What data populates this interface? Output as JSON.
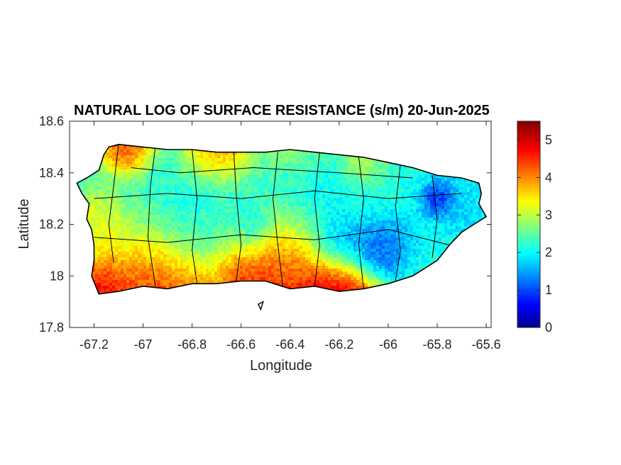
{
  "title": "NATURAL LOG OF SURFACE RESISTANCE (s/m) 20-Jun-2025",
  "x_axis": {
    "label": "Longitude",
    "range": [
      -67.3,
      -65.58
    ],
    "ticks": [
      -67.2,
      -67,
      -66.8,
      -66.6,
      -66.4,
      -66.2,
      -66,
      -65.8,
      -65.6
    ],
    "tick_labels": [
      "-67.2",
      "-67",
      "-66.8",
      "-66.6",
      "-66.4",
      "-66.2",
      "-66",
      "-65.8",
      "-65.6"
    ]
  },
  "y_axis": {
    "label": "Latitude",
    "range": [
      17.8,
      18.6
    ],
    "ticks": [
      17.8,
      18,
      18.2,
      18.4,
      18.6
    ],
    "tick_labels": [
      "17.8",
      "18",
      "18.2",
      "18.4",
      "18.6"
    ]
  },
  "colorbar": {
    "colormap": "jet",
    "range": [
      0,
      5.5
    ],
    "ticks": [
      0,
      1,
      2,
      3,
      4,
      5
    ],
    "tick_labels": [
      "0",
      "1",
      "2",
      "3",
      "4",
      "5"
    ]
  },
  "map_data": {
    "region": "Puerto Rico",
    "variable": "natural log of surface resistance",
    "units": "s/m",
    "date": "20-Jun-2025",
    "grid_lines": false,
    "coastline": [
      [
        -67.27,
        18.36
      ],
      [
        -67.23,
        18.38
      ],
      [
        -67.18,
        18.41
      ],
      [
        -67.16,
        18.47
      ],
      [
        -67.14,
        18.5
      ],
      [
        -67.1,
        18.51
      ],
      [
        -67.0,
        18.5
      ],
      [
        -66.9,
        18.49
      ],
      [
        -66.8,
        18.49
      ],
      [
        -66.7,
        18.48
      ],
      [
        -66.6,
        18.48
      ],
      [
        -66.5,
        18.48
      ],
      [
        -66.4,
        18.49
      ],
      [
        -66.3,
        18.48
      ],
      [
        -66.2,
        18.47
      ],
      [
        -66.1,
        18.46
      ],
      [
        -66.0,
        18.44
      ],
      [
        -65.9,
        18.42
      ],
      [
        -65.8,
        18.39
      ],
      [
        -65.7,
        18.38
      ],
      [
        -65.63,
        18.36
      ],
      [
        -65.62,
        18.32
      ],
      [
        -65.63,
        18.28
      ],
      [
        -65.6,
        18.23
      ],
      [
        -65.65,
        18.2
      ],
      [
        -65.7,
        18.17
      ],
      [
        -65.75,
        18.12
      ],
      [
        -65.8,
        18.06
      ],
      [
        -65.9,
        18.0
      ],
      [
        -66.0,
        17.97
      ],
      [
        -66.1,
        17.95
      ],
      [
        -66.2,
        17.94
      ],
      [
        -66.3,
        17.96
      ],
      [
        -66.4,
        17.95
      ],
      [
        -66.5,
        17.98
      ],
      [
        -66.6,
        17.98
      ],
      [
        -66.7,
        17.97
      ],
      [
        -66.8,
        17.97
      ],
      [
        -66.9,
        17.95
      ],
      [
        -67.0,
        17.96
      ],
      [
        -67.1,
        17.94
      ],
      [
        -67.18,
        17.93
      ],
      [
        -67.21,
        18.0
      ],
      [
        -67.2,
        18.06
      ],
      [
        -67.2,
        18.12
      ],
      [
        -67.21,
        18.18
      ],
      [
        -67.23,
        18.22
      ],
      [
        -67.22,
        18.28
      ],
      [
        -67.25,
        18.32
      ]
    ],
    "islets": [
      [
        [
          -66.53,
          17.89
        ],
        [
          -66.51,
          17.9
        ],
        [
          -66.52,
          17.87
        ]
      ]
    ],
    "value_sources": [
      {
        "lon": -67.17,
        "lat": 17.93,
        "value": 5.5,
        "radius": 0.12
      },
      {
        "lon": -66.95,
        "lat": 17.96,
        "value": 5.3,
        "radius": 0.16
      },
      {
        "lon": -66.5,
        "lat": 17.99,
        "value": 5.4,
        "radius": 0.2
      },
      {
        "lon": -66.2,
        "lat": 17.95,
        "value": 5.4,
        "radius": 0.14
      },
      {
        "lon": -67.0,
        "lat": 18.1,
        "value": 3.4,
        "radius": 0.22
      },
      {
        "lon": -66.45,
        "lat": 18.08,
        "value": 3.6,
        "radius": 0.14
      },
      {
        "lon": -67.17,
        "lat": 18.2,
        "value": 3.5,
        "radius": 0.09
      },
      {
        "lon": -67.05,
        "lat": 18.49,
        "value": 5.2,
        "radius": 0.09
      },
      {
        "lon": -66.72,
        "lat": 18.48,
        "value": 4.6,
        "radius": 0.12
      },
      {
        "lon": -66.4,
        "lat": 18.49,
        "value": 3.0,
        "radius": 0.12
      },
      {
        "lon": -66.1,
        "lat": 18.44,
        "value": 3.2,
        "radius": 0.08
      },
      {
        "lon": -66.75,
        "lat": 18.22,
        "value": 2.0,
        "radius": 0.18
      },
      {
        "lon": -66.35,
        "lat": 18.3,
        "value": 2.0,
        "radius": 0.18
      },
      {
        "lon": -66.0,
        "lat": 18.25,
        "value": 2.2,
        "radius": 0.18
      },
      {
        "lon": -66.9,
        "lat": 18.33,
        "value": 2.0,
        "radius": 0.2
      },
      {
        "lon": -66.55,
        "lat": 18.18,
        "value": 1.2,
        "radius": 0.08
      },
      {
        "lon": -66.05,
        "lat": 18.1,
        "value": 0.4,
        "radius": 0.1
      },
      {
        "lon": -66.2,
        "lat": 18.12,
        "value": 1.2,
        "radius": 0.1
      },
      {
        "lon": -65.95,
        "lat": 18.15,
        "value": 1.2,
        "radius": 0.08
      },
      {
        "lon": -65.8,
        "lat": 18.29,
        "value": 0.2,
        "radius": 0.06
      },
      {
        "lon": -65.72,
        "lat": 18.25,
        "value": 1.8,
        "radius": 0.1
      },
      {
        "lon": -65.85,
        "lat": 18.12,
        "value": 2.2,
        "radius": 0.1
      }
    ],
    "background_value": 2.3
  }
}
